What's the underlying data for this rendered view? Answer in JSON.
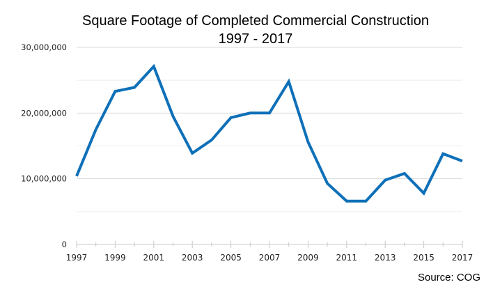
{
  "chart_data": {
    "type": "line",
    "title": "Square Footage of Completed Commercial Construction",
    "subtitle": "1997 - 2017",
    "xlabel": "",
    "ylabel": "",
    "source": "Source: COG",
    "x": [
      1997,
      1998,
      1999,
      2000,
      2001,
      2002,
      2003,
      2004,
      2005,
      2006,
      2007,
      2008,
      2009,
      2010,
      2011,
      2012,
      2013,
      2014,
      2015,
      2016,
      2017
    ],
    "series": [
      {
        "name": "Square Footage",
        "color": "#0e70b8",
        "values": [
          10400000,
          17500000,
          23300000,
          23900000,
          27100000,
          19500000,
          13900000,
          15900000,
          19300000,
          20000000,
          20000000,
          24800000,
          15600000,
          9300000,
          6600000,
          6600000,
          9800000,
          10800000,
          7800000,
          13800000,
          12700000
        ]
      }
    ],
    "xlim": [
      1997,
      2017
    ],
    "ylim": [
      0,
      30000000
    ],
    "yticks": [
      {
        "value": 0,
        "label": "0"
      },
      {
        "value": 10000000,
        "label": "10,000,000"
      },
      {
        "value": 20000000,
        "label": "20,000,000"
      },
      {
        "value": 30000000,
        "label": "30,000,000"
      }
    ],
    "minor_gridlines": [
      5000000,
      15000000,
      25000000
    ],
    "xticks": [
      {
        "value": 1997,
        "label": "1997"
      },
      {
        "value": 1999,
        "label": "1999"
      },
      {
        "value": 2001,
        "label": "2001"
      },
      {
        "value": 2003,
        "label": "2003"
      },
      {
        "value": 2005,
        "label": "2005"
      },
      {
        "value": 2007,
        "label": "2007"
      },
      {
        "value": 2009,
        "label": "2009"
      },
      {
        "value": 2011,
        "label": "2011"
      },
      {
        "value": 2013,
        "label": "2013"
      },
      {
        "value": 2015,
        "label": "2015"
      },
      {
        "value": 2017,
        "label": "2017"
      }
    ],
    "grid": true,
    "legend": "none",
    "colors": {
      "line": "#0e70b8",
      "grid": "#d9d9d9",
      "minor_grid": "#ececec",
      "axis": "#c8c8c8"
    }
  }
}
